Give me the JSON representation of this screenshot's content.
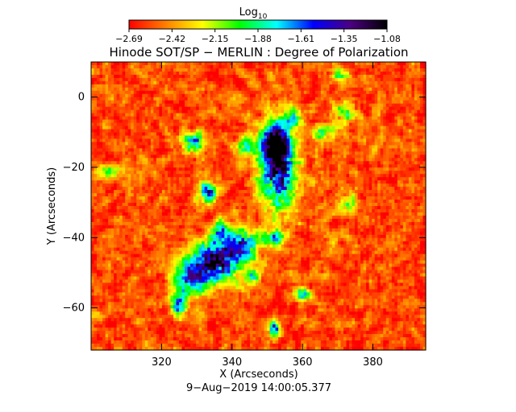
{
  "chart_data": {
    "type": "heatmap",
    "title": "Hinode SOT/SP − MERLIN : Degree of Polarization",
    "xlabel": "X (Arcseconds)",
    "ylabel": "Y (Arcseconds)",
    "timestamp": "9−Aug−2019 14:00:05.377",
    "colorbar": {
      "label": "Log",
      "label_subscript": "10",
      "range": [
        -2.69,
        -1.08
      ],
      "tick_labels": [
        "−2.69",
        "−2.42",
        "−2.15",
        "−1.88",
        "−1.61",
        "−1.35",
        "−1.08"
      ],
      "colors": [
        "#ff0000",
        "#ff7f00",
        "#ffff00",
        "#00ff00",
        "#00ffff",
        "#0000ff",
        "#4b0082",
        "#000000"
      ]
    },
    "xlim": [
      300,
      395
    ],
    "ylim": [
      -72,
      10
    ],
    "x_ticks": [
      {
        "value": 320,
        "label": "320"
      },
      {
        "value": 340,
        "label": "340"
      },
      {
        "value": 360,
        "label": "360"
      },
      {
        "value": 380,
        "label": "380"
      }
    ],
    "y_ticks": [
      {
        "value": 0,
        "label": "0"
      },
      {
        "value": -20,
        "label": "−20"
      },
      {
        "value": -40,
        "label": "−40"
      },
      {
        "value": -60,
        "label": "−60"
      }
    ],
    "background_level": -2.55,
    "features": [
      {
        "x": 353,
        "y": -20,
        "sx": 3.5,
        "sy": 8,
        "peak": -1.2
      },
      {
        "x": 352,
        "y": -13,
        "sx": 2.5,
        "sy": 3,
        "peak": -1.3
      },
      {
        "x": 335,
        "y": -47,
        "sx": 5,
        "sy": 4,
        "peak": -1.15
      },
      {
        "x": 343,
        "y": -42,
        "sx": 3,
        "sy": 3,
        "peak": -1.6
      },
      {
        "x": 328,
        "y": -52,
        "sx": 3,
        "sy": 3,
        "peak": -1.6
      },
      {
        "x": 337,
        "y": -38,
        "sx": 2,
        "sy": 2,
        "peak": -1.7
      },
      {
        "x": 325,
        "y": -59,
        "sx": 1.5,
        "sy": 2,
        "peak": -1.5
      },
      {
        "x": 333,
        "y": -27,
        "sx": 2,
        "sy": 2,
        "peak": -1.4
      },
      {
        "x": 329,
        "y": -13,
        "sx": 2.5,
        "sy": 2,
        "peak": -1.75
      },
      {
        "x": 344,
        "y": -14,
        "sx": 2,
        "sy": 2,
        "peak": -1.85
      },
      {
        "x": 357,
        "y": -6,
        "sx": 1.8,
        "sy": 1.8,
        "peak": -1.75
      },
      {
        "x": 352,
        "y": -40,
        "sx": 2,
        "sy": 1.5,
        "peak": -1.6
      },
      {
        "x": 360,
        "y": -56,
        "sx": 1.5,
        "sy": 1.2,
        "peak": -1.5
      },
      {
        "x": 352,
        "y": -66,
        "sx": 1,
        "sy": 1.5,
        "peak": -1.5
      },
      {
        "x": 373,
        "y": -30,
        "sx": 2,
        "sy": 2,
        "peak": -2.0
      },
      {
        "x": 372,
        "y": -5,
        "sx": 2.5,
        "sy": 2,
        "peak": -2.0
      },
      {
        "x": 371,
        "y": 6,
        "sx": 1.5,
        "sy": 1.5,
        "peak": -1.9
      },
      {
        "x": 305,
        "y": -21,
        "sx": 3,
        "sy": 1.5,
        "peak": -2.05
      },
      {
        "x": 366,
        "y": -10,
        "sx": 2,
        "sy": 1.5,
        "peak": -2.0
      },
      {
        "x": 346,
        "y": -51,
        "sx": 1.5,
        "sy": 1.5,
        "peak": -1.8
      }
    ]
  }
}
